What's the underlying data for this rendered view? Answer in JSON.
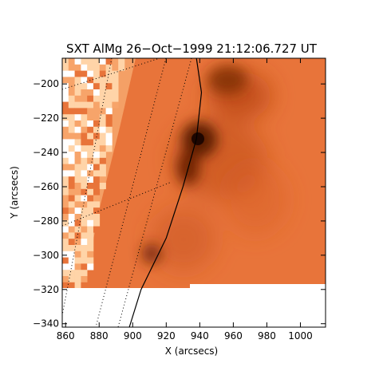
{
  "chart_data": {
    "type": "heatmap",
    "title": "SXT AlMg 26−Oct−1999 21:12:06.727 UT",
    "xlabel": "X (arcsecs)",
    "ylabel": "Y (arcsecs)",
    "xlim": [
      858,
      1015
    ],
    "ylim": [
      -342,
      -185
    ],
    "x_ticks": [
      {
        "value": 860,
        "label": "860"
      },
      {
        "value": 880,
        "label": "880"
      },
      {
        "value": 900,
        "label": "900"
      },
      {
        "value": 920,
        "label": "920"
      },
      {
        "value": 940,
        "label": "940"
      },
      {
        "value": 960,
        "label": "960"
      },
      {
        "value": 980,
        "label": "980"
      },
      {
        "value": 1000,
        "label": "1000"
      }
    ],
    "y_ticks": [
      {
        "value": -200,
        "label": "−200"
      },
      {
        "value": -220,
        "label": "−220"
      },
      {
        "value": -240,
        "label": "−240"
      },
      {
        "value": -260,
        "label": "−260"
      },
      {
        "value": -280,
        "label": "−280"
      },
      {
        "value": -300,
        "label": "−300"
      },
      {
        "value": -320,
        "label": "−320"
      },
      {
        "value": -340,
        "label": "−340"
      }
    ],
    "colormap": [
      "#ffffff",
      "#ffd4a8",
      "#f7a46a",
      "#e8743a",
      "#d95c20",
      "#8a2a08",
      "#300a00"
    ],
    "limb_curve": [
      [
        938,
        -185
      ],
      [
        941,
        -205
      ],
      [
        938,
        -232
      ],
      [
        930,
        -260
      ],
      [
        920,
        -290
      ],
      [
        905,
        -320
      ],
      [
        898,
        -342
      ]
    ],
    "grid": "heliographic dotted lines"
  }
}
